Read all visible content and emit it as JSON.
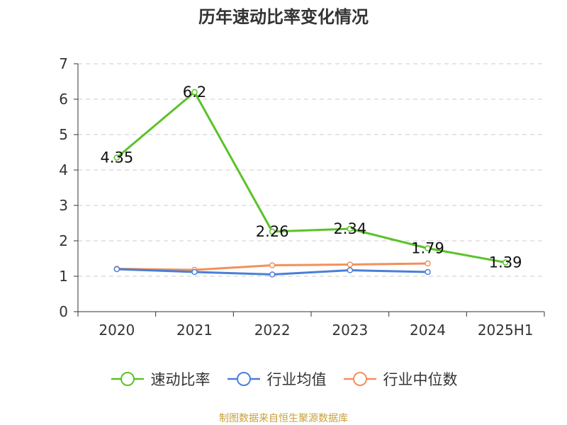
{
  "chart_data": {
    "type": "line",
    "title": "历年速动比率变化情况",
    "categories": [
      "2020",
      "2021",
      "2022",
      "2023",
      "2024",
      "2025H1"
    ],
    "ylim": [
      0,
      7
    ],
    "yticks": [
      0,
      1,
      2,
      3,
      4,
      5,
      6,
      7
    ],
    "grid": true,
    "legend_position": "bottom",
    "series": [
      {
        "name": "速动比率",
        "color": "#5ac229",
        "values": [
          4.35,
          6.2,
          2.26,
          2.34,
          1.79,
          1.39
        ],
        "data_labels": [
          "4.35",
          "6.2",
          "2.26",
          "2.34",
          "1.79",
          "1.39"
        ]
      },
      {
        "name": "行业均值",
        "color": "#4a7fd9",
        "values": [
          1.2,
          1.12,
          1.05,
          1.17,
          1.12,
          null
        ]
      },
      {
        "name": "行业中位数",
        "color": "#f2905a",
        "values": [
          1.21,
          1.18,
          1.31,
          1.33,
          1.36,
          null
        ]
      }
    ]
  },
  "footer": {
    "source": "制图数据来自恒生聚源数据库"
  }
}
